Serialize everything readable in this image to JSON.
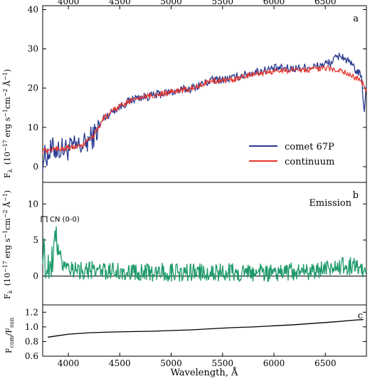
{
  "chart_data": [
    {
      "type": "line",
      "panel_letter": "a",
      "xlabel": "",
      "ylabel": "F_λ (10^-17 erg s^-1 cm^-2 Å^-1)",
      "ylabel_main": "F",
      "ylabel_sub": "λ",
      "ylabel_rest": "(10",
      "ylabel_exp1": "−17",
      "ylabel_rest2": " erg s",
      "ylabel_exp2": "−1",
      "ylabel_rest3": "cm",
      "ylabel_exp3": "−2",
      "ylabel_rest4": " Å",
      "ylabel_exp4": "−1",
      "ylabel_close": ")",
      "xlim": [
        3750,
        6900
      ],
      "ylim": [
        -4,
        41
      ],
      "xticks_top": [
        4000,
        4500,
        5000,
        5500,
        6000,
        6500
      ],
      "yticks": [
        0,
        10,
        20,
        30,
        40
      ],
      "legend_position": "lower-right",
      "series": [
        {
          "name": "comet 67P",
          "color": "#2b3a8f",
          "anchors_x": [
            3750,
            3850,
            4000,
            4150,
            4250,
            4350,
            4450,
            4550,
            4650,
            4800,
            5000,
            5200,
            5400,
            5600,
            5800,
            6000,
            6200,
            6400,
            6550,
            6650,
            6750,
            6850,
            6880,
            6890,
            6900
          ],
          "anchors_y": [
            2.0,
            4.5,
            4.5,
            5.5,
            8.0,
            12.5,
            14.5,
            16.0,
            17.5,
            18.0,
            19.0,
            20.0,
            22.0,
            22.5,
            24.0,
            25.0,
            25.0,
            25.5,
            26.5,
            28.5,
            26.0,
            23.0,
            14.0,
            18.0,
            20.0
          ],
          "noise_amplitude_blue": 3.2,
          "noise_amplitude": 1.1
        },
        {
          "name": "continuum",
          "color": "#e8382f",
          "anchors_x": [
            3750,
            3850,
            4000,
            4150,
            4250,
            4350,
            4450,
            4550,
            4650,
            4800,
            5000,
            5200,
            5400,
            5600,
            5800,
            6000,
            6200,
            6400,
            6550,
            6650,
            6750,
            6850,
            6880,
            6890,
            6900
          ],
          "anchors_y": [
            4.0,
            4.5,
            4.8,
            5.5,
            8.0,
            12.5,
            14.5,
            16.0,
            17.2,
            18.0,
            19.0,
            20.0,
            21.8,
            22.2,
            23.5,
            24.3,
            24.6,
            24.8,
            25.0,
            24.5,
            23.2,
            22.0,
            20.0,
            19.5,
            19.5
          ],
          "noise_amplitude": 0.7
        }
      ]
    },
    {
      "type": "line",
      "panel_letter": "b",
      "panel_title": "Emission",
      "annotation": "CN (0-0)",
      "xlim": [
        3750,
        6900
      ],
      "ylim": [
        -4,
        13
      ],
      "yticks": [
        0,
        5,
        10
      ],
      "ylabel_main": "F",
      "ylabel_sub": "λ",
      "ylabel_rest": "(10",
      "ylabel_exp1": "−17",
      "ylabel_rest2": " erg s",
      "ylabel_exp2": "−1",
      "ylabel_rest3": "cm",
      "ylabel_exp3": "−2",
      "ylabel_rest4": " Å",
      "ylabel_exp4": "−1",
      "ylabel_close": ")",
      "series": [
        {
          "name": "emission",
          "color": "#1f9a6b",
          "anchors_x": [
            3750,
            3780,
            3820,
            3860,
            3880,
            3900,
            3950,
            4050,
            4200,
            4500,
            5000,
            5500,
            6000,
            6400,
            6700,
            6900
          ],
          "anchors_y": [
            4.0,
            1.5,
            1.5,
            3.5,
            4.8,
            3.5,
            1.8,
            1.0,
            0.8,
            0.6,
            0.5,
            0.5,
            0.5,
            0.8,
            1.5,
            1.0
          ],
          "noise_amplitude": 1.3
        }
      ],
      "zero_line": true
    },
    {
      "type": "line",
      "panel_letter": "c",
      "xlabel": "Wavelength, Å",
      "xlim": [
        3750,
        6900
      ],
      "ylim": [
        0.6,
        1.3
      ],
      "yticks": [
        0.6,
        0.8,
        1.0,
        1.2
      ],
      "ytick_labels": [
        "0.6",
        "0.8",
        "1.0",
        "1.2"
      ],
      "xticks": [
        4000,
        4500,
        5000,
        5500,
        6000,
        6500
      ],
      "ylabel_main": "F",
      "ylabel_sub1": "com",
      "ylabel_mid": "/F",
      "ylabel_sub2": "sun",
      "series": [
        {
          "name": "ratio",
          "color": "#000000",
          "x": [
            3800,
            3900,
            4000,
            4100,
            4200,
            4300,
            4400,
            4600,
            4800,
            5000,
            5200,
            5400,
            5600,
            5800,
            6000,
            6200,
            6400,
            6600,
            6800,
            6870
          ],
          "y": [
            0.86,
            0.88,
            0.9,
            0.91,
            0.92,
            0.925,
            0.93,
            0.935,
            0.94,
            0.95,
            0.96,
            0.975,
            0.99,
            1.0,
            1.015,
            1.03,
            1.05,
            1.07,
            1.095,
            1.1
          ]
        }
      ]
    }
  ]
}
